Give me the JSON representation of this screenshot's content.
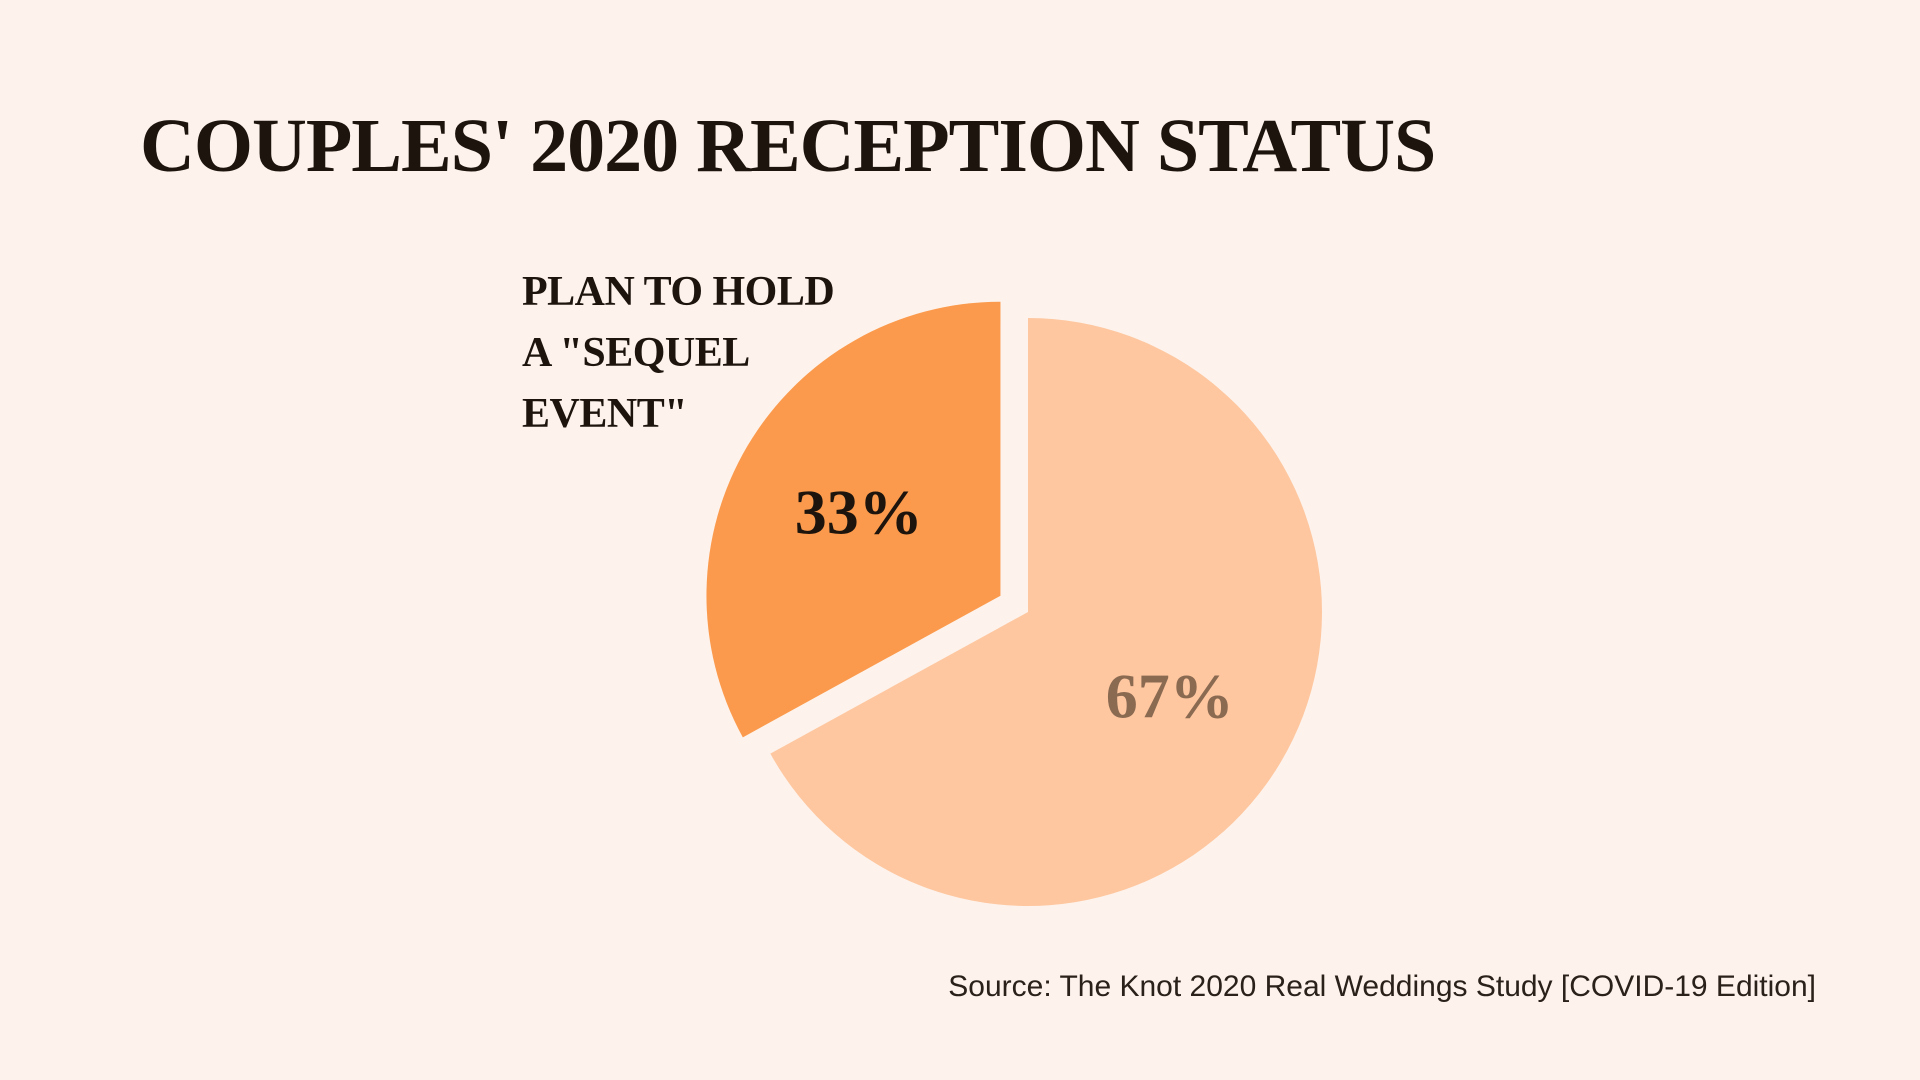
{
  "colors": {
    "background": "#fdf3ec",
    "title_text": "#1c140d",
    "slice_primary": "#fb9a4c",
    "slice_secondary": "#fec7a0",
    "secondary_label_text": "#8b6a52"
  },
  "chart_data": {
    "type": "pie",
    "title": "COUPLES' 2020 RECEPTION STATUS",
    "slices": [
      {
        "label_lines": [
          "PLAN TO HOLD",
          "A \"SEQUEL",
          "EVENT\""
        ],
        "value": 33,
        "value_label": "33%",
        "color": "#fb9a4c",
        "exploded": true
      },
      {
        "value": 67,
        "value_label": "67%",
        "color": "#fec7a0",
        "exploded": false
      }
    ],
    "start_angle": "12 o'clock, counter-clockwise for the first slice",
    "source": "Source: The Knot 2020 Real Weddings Study [COVID-19 Edition]"
  }
}
